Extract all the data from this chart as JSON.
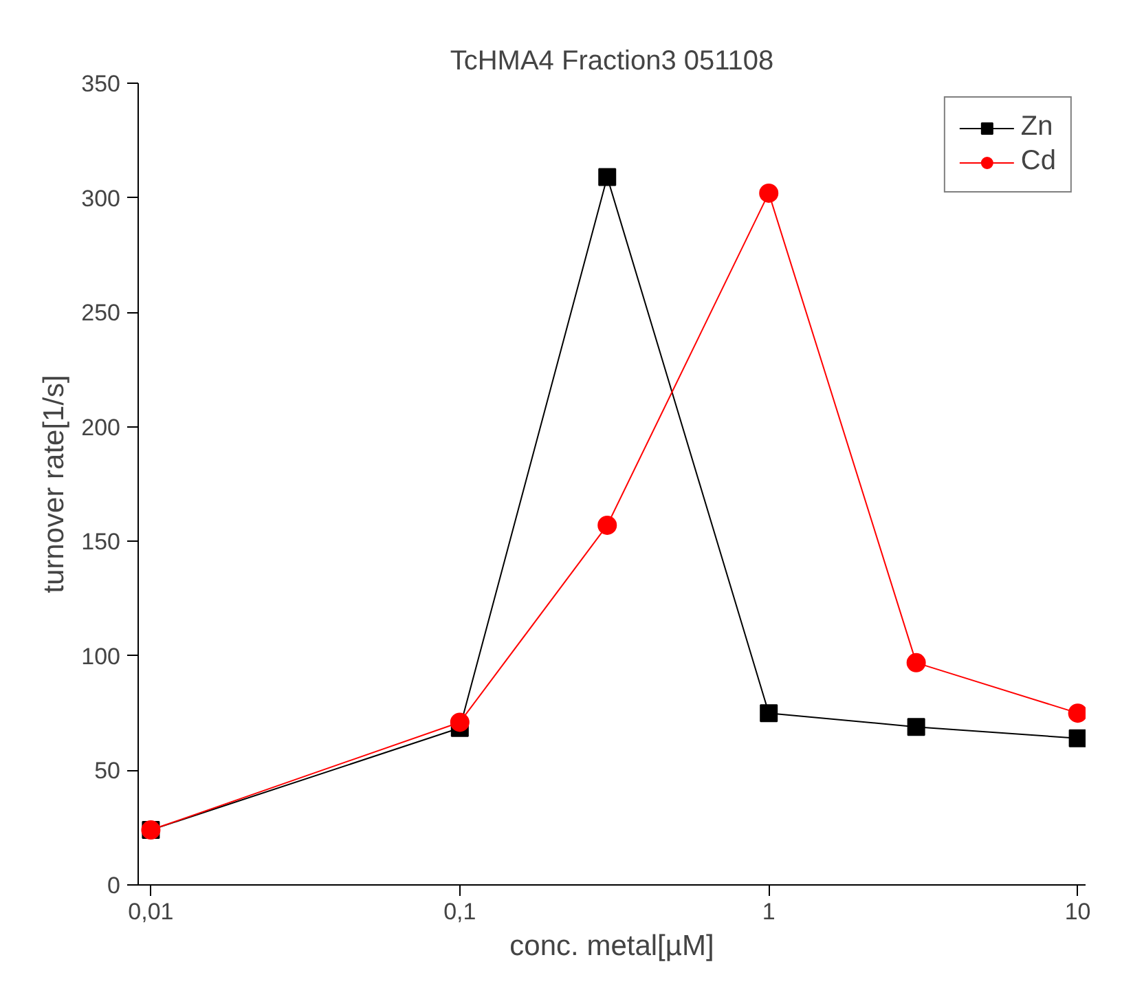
{
  "chart_data": {
    "type": "line",
    "title": "TcHMA4 Fraction3 051108",
    "xlabel": "conc. metal[µM]",
    "ylabel": "turnover rate[1/s]",
    "x": [
      0.01,
      0.1,
      0.3,
      1,
      3,
      10
    ],
    "series": [
      {
        "name": "Zn",
        "color": "#000000",
        "marker": "square",
        "values": [
          24,
          68.5,
          309,
          75,
          69,
          64
        ]
      },
      {
        "name": "Cd",
        "color": "#ff0000",
        "marker": "circle",
        "values": [
          24,
          71,
          157,
          302,
          97,
          75
        ]
      }
    ],
    "log": "x",
    "xlim": [
      0.0091,
      10.6
    ],
    "ylim": [
      0,
      350
    ],
    "xticks": [
      {
        "value": 0.01,
        "label": "0,01"
      },
      {
        "value": 0.1,
        "label": "0,1"
      },
      1,
      10
    ],
    "yticks": [
      0,
      50,
      100,
      150,
      200,
      250,
      300,
      350
    ],
    "grid": false,
    "legend": "top right",
    "line_style": "solid"
  }
}
